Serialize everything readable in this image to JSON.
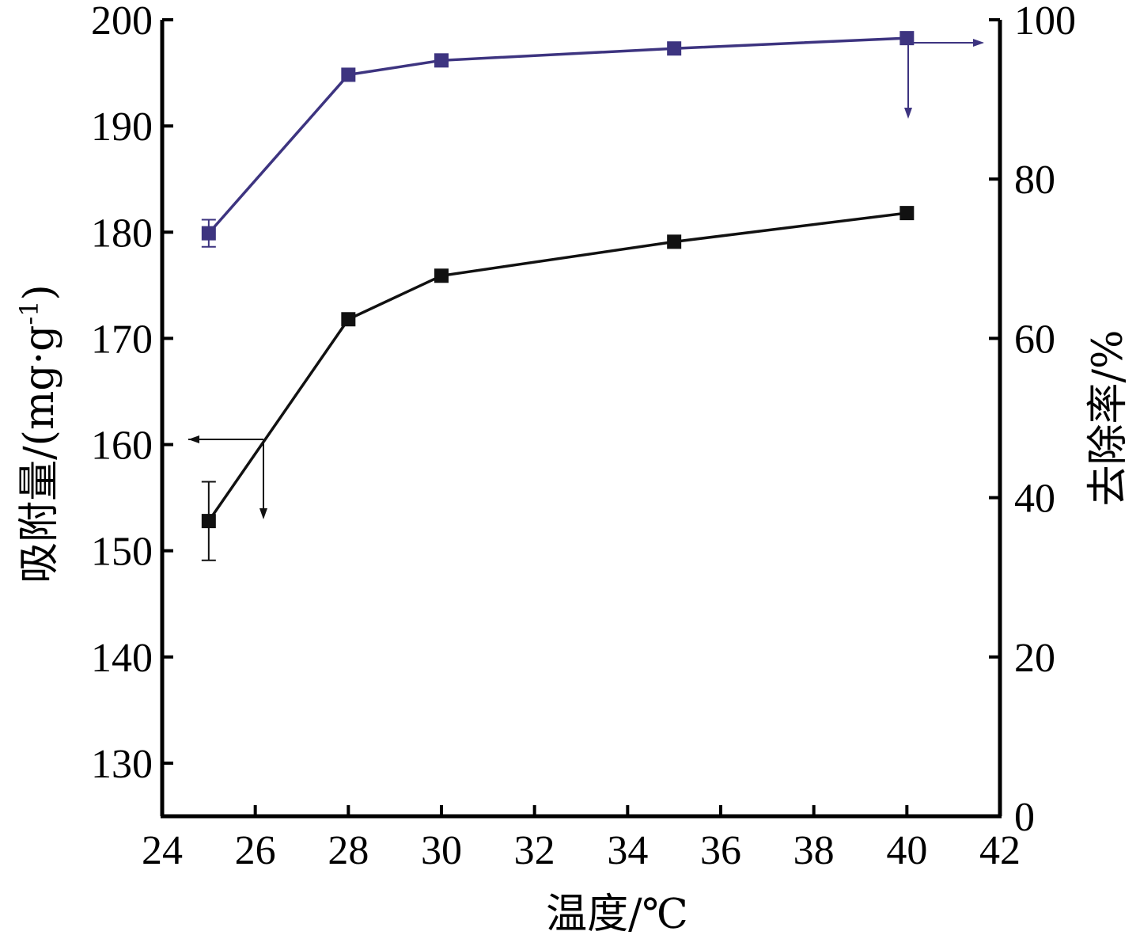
{
  "chart_data": {
    "type": "line",
    "title": "",
    "xlabel": "温度/℃",
    "ylabel_left_main": "吸附量/(mg·g",
    "ylabel_left_sup": "-1",
    "ylabel_left_end": ")",
    "ylabel_right": "去除率/%",
    "xlim": [
      24,
      42
    ],
    "ylim_left": [
      125,
      200
    ],
    "ylim_right": [
      0,
      100
    ],
    "x_ticks": [
      24,
      26,
      28,
      30,
      32,
      34,
      36,
      38,
      40,
      42
    ],
    "y_left_ticks": [
      130,
      140,
      150,
      160,
      170,
      180,
      190,
      200
    ],
    "y_right_ticks": [
      0,
      20,
      40,
      60,
      80,
      100
    ],
    "grid": false,
    "series": [
      {
        "axis": "left",
        "color": "#111111",
        "x": [
          25,
          28,
          30,
          35,
          40
        ],
        "y": [
          152.8,
          171.8,
          175.9,
          179.1,
          181.8
        ],
        "error": [
          3.7,
          0,
          0,
          0,
          0
        ]
      },
      {
        "axis": "right",
        "color": "#3d3480",
        "x": [
          25,
          28,
          30,
          35,
          40
        ],
        "y": [
          73.2,
          93.1,
          94.9,
          96.4,
          97.7
        ],
        "error": [
          1.7,
          0,
          0,
          0,
          0
        ]
      }
    ]
  }
}
